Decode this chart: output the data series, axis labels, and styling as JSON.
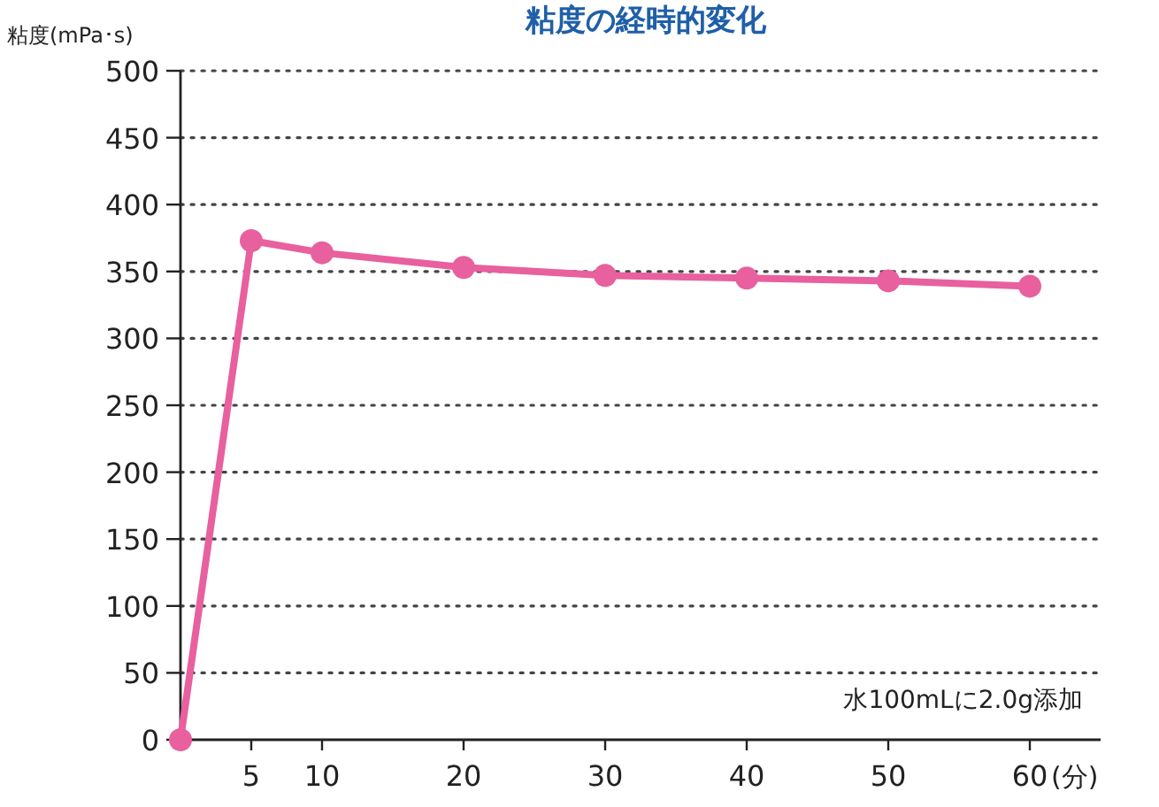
{
  "chart_data": {
    "type": "line",
    "title": "粘度の経時的変化",
    "ylabel": "粘度(mPa･s)",
    "xlabel": "(分)",
    "x": [
      0,
      5,
      10,
      20,
      30,
      40,
      50,
      60
    ],
    "series": [
      {
        "color": "#e8609e",
        "values": [
          0,
          373,
          364,
          353,
          347,
          345,
          343,
          339
        ]
      }
    ],
    "xlim": [
      0,
      65
    ],
    "xticks": [
      5,
      10,
      20,
      30,
      40,
      50,
      60
    ],
    "ylim": [
      0,
      500
    ],
    "yticks": [
      0,
      50,
      100,
      150,
      200,
      250,
      300,
      350,
      400,
      450,
      500
    ],
    "grid": "y",
    "marker": "circle",
    "line_style": "solid",
    "annotations": [
      "水100mLに2.0g添加"
    ]
  }
}
